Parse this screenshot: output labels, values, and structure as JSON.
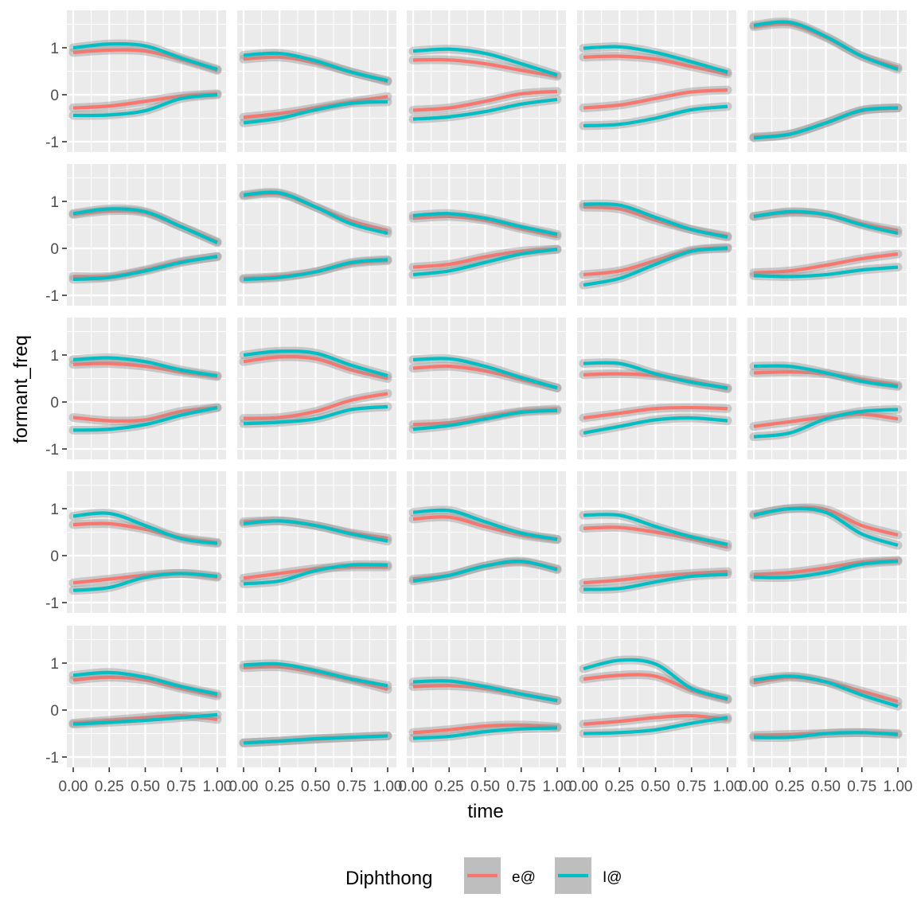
{
  "chart_data": {
    "type": "line",
    "layout": "facet-grid",
    "rows": 5,
    "cols": 5,
    "title": "",
    "xlabel": "time",
    "ylabel": "formant_freq",
    "xlim": [
      0,
      1
    ],
    "ylim": [
      -1.2,
      1.7
    ],
    "x_ticks": [
      0,
      0.25,
      0.5,
      0.75,
      1
    ],
    "x_tick_labels": [
      "0.00",
      "0.25",
      "0.50",
      "0.75",
      "1.00"
    ],
    "y_ticks": [
      -1,
      0,
      1
    ],
    "y_tick_labels": [
      "-1",
      "0",
      "1"
    ],
    "grid": true,
    "legend": {
      "title": "Diphthong",
      "position": "bottom",
      "entries": [
        {
          "name": "e@",
          "color": "#F8766D"
        },
        {
          "name": "I@",
          "color": "#00BFC4"
        }
      ]
    },
    "colors": {
      "e@": "#F8766D",
      "I@": "#00BFC4"
    },
    "panels": [
      {
        "e@": [
          [
            0.9,
            0.95,
            0.93,
            0.75,
            0.52
          ],
          [
            -0.28,
            -0.24,
            -0.14,
            -0.03,
            0.02
          ]
        ],
        "I@": [
          [
            1.0,
            1.08,
            1.04,
            0.78,
            0.54
          ],
          [
            -0.44,
            -0.43,
            -0.34,
            -0.08,
            0.0
          ]
        ]
      },
      {
        "e@": [
          [
            0.76,
            0.8,
            0.68,
            0.48,
            0.28
          ],
          [
            -0.48,
            -0.4,
            -0.28,
            -0.15,
            -0.04
          ]
        ],
        "I@": [
          [
            0.84,
            0.88,
            0.72,
            0.48,
            0.3
          ],
          [
            -0.6,
            -0.5,
            -0.32,
            -0.18,
            -0.15
          ]
        ]
      },
      {
        "e@": [
          [
            0.74,
            0.74,
            0.66,
            0.52,
            0.39
          ],
          [
            -0.33,
            -0.28,
            -0.14,
            0.02,
            0.07
          ]
        ],
        "I@": [
          [
            0.93,
            0.97,
            0.88,
            0.66,
            0.42
          ],
          [
            -0.52,
            -0.47,
            -0.36,
            -0.2,
            -0.1
          ]
        ]
      },
      {
        "e@": [
          [
            0.8,
            0.82,
            0.76,
            0.6,
            0.44
          ],
          [
            -0.28,
            -0.22,
            -0.08,
            0.06,
            0.1
          ]
        ],
        "I@": [
          [
            0.99,
            1.02,
            0.9,
            0.7,
            0.48
          ],
          [
            -0.66,
            -0.63,
            -0.5,
            -0.32,
            -0.25
          ]
        ]
      },
      {
        "e@": [
          [
            1.45,
            1.5,
            1.22,
            0.82,
            0.58
          ],
          [
            -0.9,
            -0.84,
            -0.6,
            -0.34,
            -0.28
          ]
        ],
        "I@": [
          [
            1.48,
            1.54,
            1.24,
            0.82,
            0.54
          ],
          [
            -0.92,
            -0.84,
            -0.6,
            -0.33,
            -0.28
          ]
        ]
      },
      {
        "e@": [
          [
            0.72,
            0.8,
            0.76,
            0.46,
            0.14
          ],
          [
            -0.6,
            -0.6,
            -0.46,
            -0.28,
            -0.18
          ]
        ],
        "I@": [
          [
            0.74,
            0.84,
            0.78,
            0.46,
            0.12
          ],
          [
            -0.66,
            -0.62,
            -0.48,
            -0.3,
            -0.17
          ]
        ]
      },
      {
        "e@": [
          [
            1.12,
            1.16,
            0.88,
            0.58,
            0.38
          ],
          [
            -0.64,
            -0.6,
            -0.5,
            -0.32,
            -0.26
          ]
        ],
        "I@": [
          [
            1.14,
            1.18,
            0.88,
            0.52,
            0.32
          ],
          [
            -0.66,
            -0.62,
            -0.5,
            -0.3,
            -0.24
          ]
        ]
      },
      {
        "e@": [
          [
            0.64,
            0.68,
            0.6,
            0.42,
            0.26
          ],
          [
            -0.4,
            -0.34,
            -0.18,
            -0.06,
            -0.02
          ]
        ],
        "I@": [
          [
            0.7,
            0.74,
            0.64,
            0.46,
            0.3
          ],
          [
            -0.56,
            -0.48,
            -0.3,
            -0.12,
            -0.02
          ]
        ]
      },
      {
        "e@": [
          [
            0.88,
            0.84,
            0.6,
            0.4,
            0.26
          ],
          [
            -0.56,
            -0.48,
            -0.26,
            -0.04,
            0.02
          ]
        ],
        "I@": [
          [
            0.94,
            0.92,
            0.66,
            0.4,
            0.24
          ],
          [
            -0.78,
            -0.64,
            -0.34,
            -0.06,
            0.0
          ]
        ]
      },
      {
        "e@": [
          [
            0.68,
            0.76,
            0.72,
            0.52,
            0.38
          ],
          [
            -0.52,
            -0.48,
            -0.36,
            -0.22,
            -0.12
          ]
        ],
        "I@": [
          [
            0.68,
            0.78,
            0.72,
            0.5,
            0.32
          ],
          [
            -0.58,
            -0.6,
            -0.56,
            -0.46,
            -0.4
          ]
        ]
      },
      {
        "e@": [
          [
            0.8,
            0.82,
            0.76,
            0.64,
            0.54
          ],
          [
            -0.33,
            -0.4,
            -0.38,
            -0.2,
            -0.12
          ]
        ],
        "I@": [
          [
            0.9,
            0.94,
            0.86,
            0.68,
            0.56
          ],
          [
            -0.6,
            -0.58,
            -0.48,
            -0.28,
            -0.12
          ]
        ]
      },
      {
        "e@": [
          [
            0.86,
            0.96,
            0.92,
            0.68,
            0.5
          ],
          [
            -0.35,
            -0.33,
            -0.2,
            0.04,
            0.18
          ]
        ],
        "I@": [
          [
            1.0,
            1.08,
            1.04,
            0.78,
            0.56
          ],
          [
            -0.46,
            -0.43,
            -0.36,
            -0.16,
            -0.1
          ]
        ]
      },
      {
        "e@": [
          [
            0.72,
            0.76,
            0.66,
            0.48,
            0.3
          ],
          [
            -0.48,
            -0.44,
            -0.32,
            -0.2,
            -0.15
          ]
        ],
        "I@": [
          [
            0.9,
            0.92,
            0.76,
            0.52,
            0.3
          ],
          [
            -0.58,
            -0.5,
            -0.36,
            -0.22,
            -0.18
          ]
        ]
      },
      {
        "e@": [
          [
            0.58,
            0.6,
            0.56,
            0.44,
            0.28
          ],
          [
            -0.34,
            -0.24,
            -0.14,
            -0.12,
            -0.14
          ]
        ],
        "I@": [
          [
            0.82,
            0.82,
            0.6,
            0.42,
            0.3
          ],
          [
            -0.66,
            -0.52,
            -0.38,
            -0.34,
            -0.4
          ]
        ]
      },
      {
        "e@": [
          [
            0.62,
            0.64,
            0.6,
            0.48,
            0.36
          ],
          [
            -0.52,
            -0.42,
            -0.32,
            -0.26,
            -0.36
          ]
        ],
        "I@": [
          [
            0.76,
            0.76,
            0.62,
            0.44,
            0.33
          ],
          [
            -0.74,
            -0.66,
            -0.36,
            -0.2,
            -0.16
          ]
        ]
      },
      {
        "e@": [
          [
            0.66,
            0.68,
            0.56,
            0.38,
            0.28
          ],
          [
            -0.58,
            -0.5,
            -0.42,
            -0.38,
            -0.46
          ]
        ],
        "I@": [
          [
            0.84,
            0.9,
            0.64,
            0.36,
            0.26
          ],
          [
            -0.74,
            -0.68,
            -0.46,
            -0.38,
            -0.44
          ]
        ]
      },
      {
        "e@": [
          [
            0.72,
            0.74,
            0.64,
            0.48,
            0.37
          ],
          [
            -0.48,
            -0.38,
            -0.28,
            -0.24,
            -0.24
          ]
        ],
        "I@": [
          [
            0.68,
            0.74,
            0.64,
            0.46,
            0.31
          ],
          [
            -0.6,
            -0.54,
            -0.32,
            -0.2,
            -0.2
          ]
        ]
      },
      {
        "e@": [
          [
            0.78,
            0.82,
            0.62,
            0.44,
            0.34
          ],
          [
            -0.5,
            -0.42,
            -0.22,
            -0.14,
            -0.28
          ]
        ],
        "I@": [
          [
            0.92,
            0.96,
            0.72,
            0.48,
            0.35
          ],
          [
            -0.54,
            -0.42,
            -0.22,
            -0.12,
            -0.3
          ]
        ]
      },
      {
        "e@": [
          [
            0.58,
            0.6,
            0.5,
            0.36,
            0.18
          ],
          [
            -0.58,
            -0.52,
            -0.44,
            -0.38,
            -0.34
          ]
        ],
        "I@": [
          [
            0.86,
            0.86,
            0.62,
            0.4,
            0.24
          ],
          [
            -0.72,
            -0.7,
            -0.56,
            -0.44,
            -0.4
          ]
        ]
      },
      {
        "e@": [
          [
            0.88,
            1.0,
            0.98,
            0.64,
            0.44
          ],
          [
            -0.4,
            -0.36,
            -0.26,
            -0.14,
            -0.1
          ]
        ],
        "I@": [
          [
            0.86,
            1.0,
            0.92,
            0.46,
            0.22
          ],
          [
            -0.46,
            -0.46,
            -0.36,
            -0.18,
            -0.12
          ]
        ]
      },
      {
        "e@": [
          [
            0.64,
            0.7,
            0.64,
            0.46,
            0.3
          ],
          [
            -0.28,
            -0.22,
            -0.16,
            -0.12,
            -0.2
          ]
        ],
        "I@": [
          [
            0.74,
            0.8,
            0.7,
            0.5,
            0.34
          ],
          [
            -0.3,
            -0.26,
            -0.22,
            -0.16,
            -0.1
          ]
        ]
      },
      {
        "e@": [
          [
            0.9,
            0.92,
            0.8,
            0.64,
            0.44
          ],
          [
            -0.7,
            -0.66,
            -0.62,
            -0.58,
            -0.55
          ]
        ],
        "I@": [
          [
            0.96,
            0.98,
            0.84,
            0.66,
            0.52
          ],
          [
            -0.7,
            -0.66,
            -0.61,
            -0.58,
            -0.55
          ]
        ]
      },
      {
        "e@": [
          [
            0.5,
            0.52,
            0.46,
            0.34,
            0.2
          ],
          [
            -0.48,
            -0.42,
            -0.34,
            -0.32,
            -0.36
          ]
        ],
        "I@": [
          [
            0.6,
            0.62,
            0.5,
            0.34,
            0.2
          ],
          [
            -0.6,
            -0.56,
            -0.46,
            -0.4,
            -0.38
          ]
        ]
      },
      {
        "e@": [
          [
            0.66,
            0.74,
            0.72,
            0.42,
            0.22
          ],
          [
            -0.3,
            -0.24,
            -0.16,
            -0.12,
            -0.2
          ]
        ],
        "I@": [
          [
            0.88,
            1.06,
            0.98,
            0.46,
            0.24
          ],
          [
            -0.5,
            -0.48,
            -0.42,
            -0.28,
            -0.16
          ]
        ]
      },
      {
        "e@": [
          [
            0.58,
            0.7,
            0.6,
            0.4,
            0.18
          ],
          [
            -0.54,
            -0.52,
            -0.5,
            -0.48,
            -0.5
          ]
        ],
        "I@": [
          [
            0.64,
            0.72,
            0.6,
            0.32,
            0.08
          ],
          [
            -0.58,
            -0.58,
            -0.5,
            -0.48,
            -0.52
          ]
        ]
      }
    ]
  }
}
